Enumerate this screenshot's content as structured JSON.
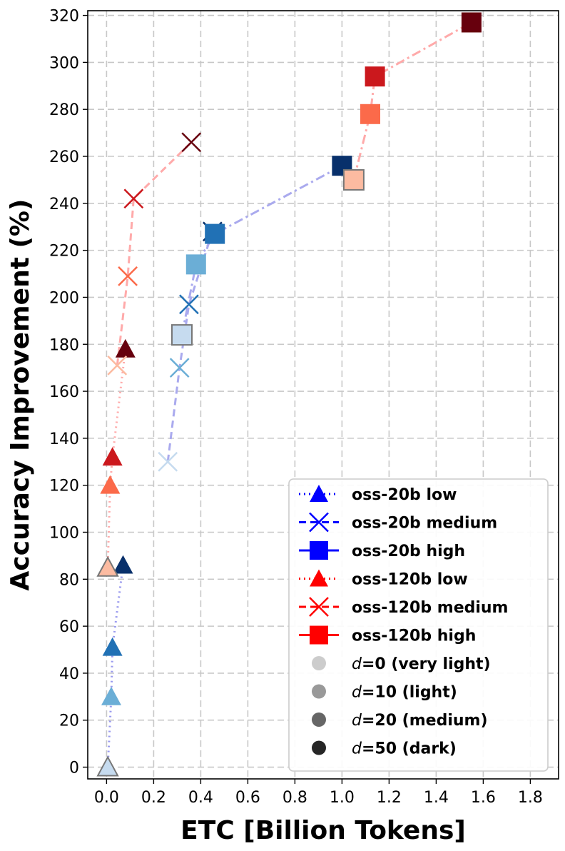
{
  "chart_data": {
    "type": "scatter",
    "xlabel": "ETC [Billion Tokens]",
    "ylabel": "Accuracy Improvement (%)",
    "xlim": [
      -0.08,
      1.92
    ],
    "ylim": [
      -5,
      322
    ],
    "xticks": [
      0.0,
      0.2,
      0.4,
      0.6,
      0.8,
      1.0,
      1.2,
      1.4,
      1.6,
      1.8
    ],
    "xtick_labels": [
      "0.0",
      "0.2",
      "0.4",
      "0.6",
      "0.8",
      "1.0",
      "1.2",
      "1.4",
      "1.6",
      "1.8"
    ],
    "yticks": [
      0,
      20,
      40,
      60,
      80,
      100,
      120,
      140,
      160,
      180,
      200,
      220,
      240,
      260,
      280,
      300,
      320
    ],
    "ytick_labels": [
      "0",
      "20",
      "40",
      "60",
      "80",
      "100",
      "120",
      "140",
      "160",
      "180",
      "200",
      "220",
      "240",
      "260",
      "280",
      "300",
      "320"
    ],
    "grid": true,
    "legend_position": "lower-right",
    "series": [
      {
        "name": "oss-20b low",
        "model": "oss-20b",
        "effort": "low",
        "marker": "triangle",
        "line_style": "dotted",
        "line_color": "#9999ee",
        "points": [
          {
            "d": 0,
            "x": 0.005,
            "y": 0
          },
          {
            "d": 10,
            "x": 0.02,
            "y": 30
          },
          {
            "d": 20,
            "x": 0.025,
            "y": 51
          },
          {
            "d": 50,
            "x": 0.07,
            "y": 86
          }
        ]
      },
      {
        "name": "oss-20b medium",
        "model": "oss-20b",
        "effort": "medium",
        "marker": "x",
        "line_style": "dashed",
        "line_color": "#aaaaee",
        "points": [
          {
            "d": 0,
            "x": 0.26,
            "y": 130
          },
          {
            "d": 10,
            "x": 0.31,
            "y": 170
          },
          {
            "d": 20,
            "x": 0.35,
            "y": 197
          },
          {
            "d": 50,
            "x": 0.45,
            "y": 228
          }
        ]
      },
      {
        "name": "oss-20b high",
        "model": "oss-20b",
        "effort": "high",
        "marker": "square",
        "line_style": "dashdot",
        "line_color": "#aaaaee",
        "points": [
          {
            "d": 0,
            "x": 0.32,
            "y": 184
          },
          {
            "d": 10,
            "x": 0.38,
            "y": 214
          },
          {
            "d": 20,
            "x": 0.46,
            "y": 227
          },
          {
            "d": 50,
            "x": 1.0,
            "y": 256
          }
        ]
      },
      {
        "name": "oss-120b low",
        "model": "oss-120b",
        "effort": "low",
        "marker": "triangle",
        "line_style": "dotted",
        "line_color": "#ffaaaa",
        "points": [
          {
            "d": 0,
            "x": 0.005,
            "y": 85
          },
          {
            "d": 10,
            "x": 0.015,
            "y": 120
          },
          {
            "d": 20,
            "x": 0.025,
            "y": 132
          },
          {
            "d": 50,
            "x": 0.08,
            "y": 178
          }
        ]
      },
      {
        "name": "oss-120b medium",
        "model": "oss-120b",
        "effort": "medium",
        "marker": "x",
        "line_style": "dashed",
        "line_color": "#ffaaaa",
        "points": [
          {
            "d": 0,
            "x": 0.045,
            "y": 171
          },
          {
            "d": 10,
            "x": 0.09,
            "y": 209
          },
          {
            "d": 20,
            "x": 0.115,
            "y": 242
          },
          {
            "d": 50,
            "x": 0.36,
            "y": 266
          }
        ]
      },
      {
        "name": "oss-120b high",
        "model": "oss-120b",
        "effort": "high",
        "marker": "square",
        "line_style": "dashdot",
        "line_color": "#ffaaaa",
        "points": [
          {
            "d": 0,
            "x": 1.05,
            "y": 250
          },
          {
            "d": 10,
            "x": 1.12,
            "y": 278
          },
          {
            "d": 20,
            "x": 1.14,
            "y": 294
          },
          {
            "d": 50,
            "x": 1.55,
            "y": 317
          }
        ]
      }
    ],
    "shade_colors": {
      "oss-20b": {
        "0": "#c6dbef",
        "10": "#6baed6",
        "20": "#2171b5",
        "50": "#08306b"
      },
      "oss-120b": {
        "0": "#fcbba1",
        "10": "#fb6a4a",
        "20": "#cb181d",
        "50": "#67000d"
      }
    },
    "legend": {
      "model_entries": [
        {
          "label": "oss-20b low",
          "marker": "triangle",
          "color": "#0000ff",
          "line_style": "dotted"
        },
        {
          "label": "oss-20b medium",
          "marker": "x",
          "color": "#0000ff",
          "line_style": "dashed"
        },
        {
          "label": "oss-20b high",
          "marker": "square",
          "color": "#0000ff",
          "line_style": "solid"
        },
        {
          "label": "oss-120b low",
          "marker": "triangle",
          "color": "#ff0000",
          "line_style": "dotted"
        },
        {
          "label": "oss-120b medium",
          "marker": "x",
          "color": "#ff0000",
          "line_style": "dashed"
        },
        {
          "label": "oss-120b high",
          "marker": "square",
          "color": "#ff0000",
          "line_style": "solid"
        }
      ],
      "depth_entries": [
        {
          "prefix": "d",
          "suffix": "=0 (very light)",
          "color": "#cccccc"
        },
        {
          "prefix": "d",
          "suffix": "=10 (light)",
          "color": "#999999"
        },
        {
          "prefix": "d",
          "suffix": "=20 (medium)",
          "color": "#666666"
        },
        {
          "prefix": "d",
          "suffix": "=50 (dark)",
          "color": "#262626"
        }
      ]
    }
  }
}
